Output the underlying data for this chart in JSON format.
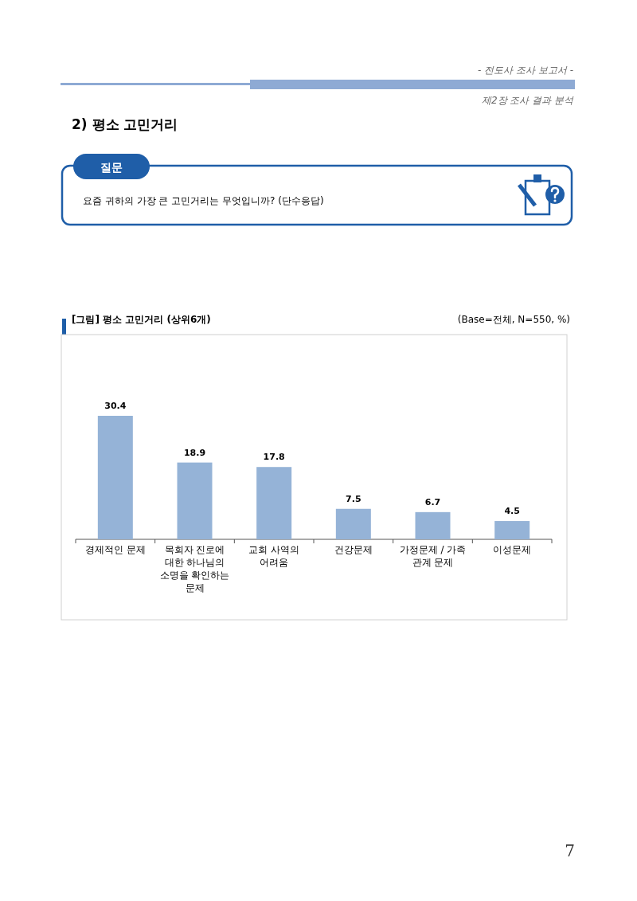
{
  "chart_data": {
    "type": "bar",
    "title": "[그림] 평소 고민거리 (상위6개)",
    "subtitle": "(Base=전체, N=550, %)",
    "categories": [
      "경제적인 문제",
      "목회자 진로에 대한 하나님의 소명을 확인하는 문제",
      "교회 사역의 어려움",
      "건강문제",
      "가정문제 / 가족 관계 문제",
      "이성문제"
    ],
    "values": [
      30.4,
      18.9,
      17.8,
      7.5,
      6.7,
      4.5
    ],
    "color": "#95b3d7",
    "data_labels": true,
    "annotations": [
      "- 전도사 조사 보고서 -",
      "제2장 조사 결과 분석",
      "2) 평소 고민거리",
      "질문",
      "요즘 귀하의 가장 큰 고민거리는 무엇입니까? (단수응답)",
      "7"
    ]
  }
}
